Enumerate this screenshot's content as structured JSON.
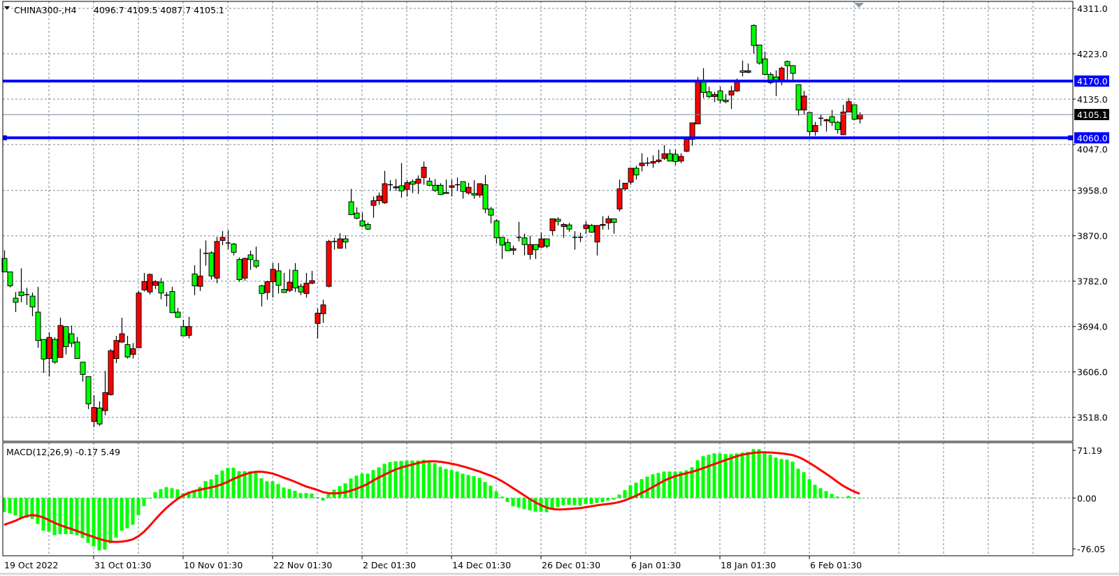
{
  "header": {
    "symbol_timeframe": "CHINA300-,H4",
    "ohlc": "4096.7 4109.5 4087.7 4105.1"
  },
  "macd_header": "MACD(12,26,9) -0.17 5.49",
  "colors": {
    "background": "#ffffff",
    "grid": "#778899",
    "bull_body": "#ff0000",
    "bear_body": "#00ff00",
    "wick": "#000000",
    "hline": "#0000ff",
    "bid_line": "#778899",
    "histogram": "#00ff00",
    "signal": "#ff0000"
  },
  "chart_data": [
    {
      "type": "candlestick",
      "symbol": "CHINA300-",
      "timeframe": "H4",
      "ylim": [
        3490,
        4325
      ],
      "y_ticks": [
        "4311.0",
        "4223.0",
        "4135.0",
        "4047.0",
        "3958.0",
        "3870.0",
        "3782.0",
        "3694.0",
        "3606.0",
        "3518.0"
      ],
      "x_labels": [
        "19 Oct 2022",
        "31 Oct 01:30",
        "10 Nov 01:30",
        "22 Nov 01:30",
        "2 Dec 01:30",
        "14 Dec 01:30",
        "26 Dec 01:30",
        "6 Jan 01:30",
        "18 Jan 01:30",
        "6 Feb 01:30"
      ],
      "grid": true,
      "horizontal_lines": [
        {
          "price": 4170.0,
          "label": "4170.0"
        },
        {
          "price": 4060.0,
          "label": "4060.0",
          "selected": true
        }
      ],
      "bid": {
        "price": 4105.1,
        "label": "4105.1"
      },
      "ohlc": [
        [
          3826,
          3842,
          3800,
          3800
        ],
        [
          3800,
          3800,
          3770,
          3773
        ],
        [
          3749,
          3761,
          3722,
          3741
        ],
        [
          3761,
          3807,
          3741,
          3754
        ],
        [
          3756,
          3769,
          3736,
          3756
        ],
        [
          3753,
          3760,
          3714,
          3732
        ],
        [
          3722,
          3771,
          3653,
          3667
        ],
        [
          3669,
          3669,
          3604,
          3631
        ],
        [
          3632,
          3683,
          3597,
          3673
        ],
        [
          3669,
          3673,
          3622,
          3625
        ],
        [
          3634,
          3711,
          3634,
          3696
        ],
        [
          3694,
          3694,
          3640,
          3655
        ],
        [
          3680,
          3696,
          3654,
          3662
        ],
        [
          3664,
          3674,
          3632,
          3632
        ],
        [
          3625,
          3625,
          3587,
          3601
        ],
        [
          3597,
          3597,
          3534,
          3544
        ],
        [
          3510,
          3561,
          3499,
          3537
        ],
        [
          3536,
          3549,
          3501,
          3505
        ],
        [
          3531,
          3608,
          3522,
          3566
        ],
        [
          3562,
          3650,
          3560,
          3647
        ],
        [
          3632,
          3676,
          3623,
          3667
        ],
        [
          3664,
          3711,
          3662,
          3680
        ],
        [
          3659,
          3676,
          3632,
          3635
        ],
        [
          3640,
          3662,
          3632,
          3651
        ],
        [
          3653,
          3763,
          3653,
          3759
        ],
        [
          3765,
          3798,
          3762,
          3781
        ],
        [
          3761,
          3797,
          3756,
          3795
        ],
        [
          3774,
          3784,
          3767,
          3781
        ],
        [
          3780,
          3788,
          3747,
          3759
        ],
        [
          3755,
          3761,
          3733,
          3755
        ],
        [
          3762,
          3771,
          3720,
          3721
        ],
        [
          3722,
          3730,
          3712,
          3712
        ],
        [
          3694,
          3707,
          3676,
          3676
        ],
        [
          3677,
          3713,
          3671,
          3694
        ],
        [
          3796,
          3813,
          3755,
          3773
        ],
        [
          3772,
          3845,
          3763,
          3792
        ],
        [
          3836,
          3861,
          3812,
          3836
        ],
        [
          3837,
          3840,
          3785,
          3792
        ],
        [
          3788,
          3868,
          3778,
          3859
        ],
        [
          3861,
          3879,
          3852,
          3867
        ],
        [
          3856,
          3881,
          3844,
          3856
        ],
        [
          3854,
          3856,
          3832,
          3838
        ],
        [
          3824,
          3828,
          3781,
          3785
        ],
        [
          3788,
          3828,
          3783,
          3826
        ],
        [
          3833,
          3841,
          3804,
          3824
        ],
        [
          3822,
          3849,
          3807,
          3811
        ],
        [
          3773,
          3775,
          3733,
          3758
        ],
        [
          3760,
          3783,
          3746,
          3781
        ],
        [
          3781,
          3817,
          3750,
          3805
        ],
        [
          3802,
          3817,
          3758,
          3774
        ],
        [
          3766,
          3798,
          3760,
          3760
        ],
        [
          3764,
          3805,
          3761,
          3780
        ],
        [
          3803,
          3817,
          3761,
          3769
        ],
        [
          3772,
          3777,
          3755,
          3761
        ],
        [
          3758,
          3798,
          3750,
          3778
        ],
        [
          3778,
          3802,
          3776,
          3783
        ],
        [
          3700,
          3729,
          3671,
          3720
        ],
        [
          3719,
          3746,
          3701,
          3736
        ],
        [
          3772,
          3862,
          3770,
          3859
        ],
        [
          3859,
          3866,
          3843,
          3859
        ],
        [
          3846,
          3875,
          3845,
          3864
        ],
        [
          3864,
          3871,
          3845,
          3858
        ],
        [
          3936,
          3961,
          3910,
          3911
        ],
        [
          3914,
          3925,
          3902,
          3904
        ],
        [
          3899,
          3915,
          3887,
          3889
        ],
        [
          3892,
          3896,
          3881,
          3883
        ],
        [
          3929,
          3946,
          3905,
          3938
        ],
        [
          3938,
          3954,
          3930,
          3947
        ],
        [
          3934,
          3996,
          3932,
          3971
        ],
        [
          3969,
          3978,
          3957,
          3969
        ],
        [
          3963,
          3980,
          3957,
          3965
        ],
        [
          3967,
          4011,
          3944,
          3957
        ],
        [
          3960,
          3978,
          3946,
          3973
        ],
        [
          3975,
          3979,
          3953,
          3970
        ],
        [
          3972,
          3987,
          3951,
          3980
        ],
        [
          3983,
          4014,
          3969,
          4003
        ],
        [
          3976,
          3983,
          3966,
          3968
        ],
        [
          3968,
          3980,
          3955,
          3958
        ],
        [
          3968,
          3972,
          3949,
          3950
        ],
        [
          3954,
          3979,
          3952,
          3952
        ],
        [
          3964,
          3979,
          3946,
          3967
        ],
        [
          3969,
          3983,
          3957,
          3969
        ],
        [
          3975,
          3975,
          3942,
          3956
        ],
        [
          3953,
          3973,
          3950,
          3964
        ],
        [
          3952,
          3978,
          3942,
          3949
        ],
        [
          3949,
          3971,
          3944,
          3971
        ],
        [
          3969,
          3988,
          3914,
          3922
        ],
        [
          3922,
          3926,
          3894,
          3910
        ],
        [
          3899,
          3902,
          3855,
          3866
        ],
        [
          3867,
          3867,
          3825,
          3852
        ],
        [
          3857,
          3864,
          3841,
          3841
        ],
        [
          3842,
          3851,
          3833,
          3845
        ],
        [
          3867,
          3897,
          3859,
          3867
        ],
        [
          3866,
          3874,
          3832,
          3853
        ],
        [
          3834,
          3870,
          3824,
          3853
        ],
        [
          3853,
          3853,
          3825,
          3843
        ],
        [
          3848,
          3876,
          3846,
          3864
        ],
        [
          3864,
          3864,
          3846,
          3850
        ],
        [
          3880,
          3903,
          3871,
          3903
        ],
        [
          3902,
          3906,
          3890,
          3898
        ],
        [
          3888,
          3895,
          3866,
          3892
        ],
        [
          3891,
          3895,
          3878,
          3883
        ],
        [
          3867,
          3879,
          3843,
          3867
        ],
        [
          3867,
          3876,
          3858,
          3867
        ],
        [
          3884,
          3898,
          3874,
          3891
        ],
        [
          3890,
          3893,
          3876,
          3877
        ],
        [
          3858,
          3890,
          3832,
          3890
        ],
        [
          3890,
          3908,
          3882,
          3892
        ],
        [
          3895,
          3909,
          3882,
          3903
        ],
        [
          3903,
          3903,
          3874,
          3896
        ],
        [
          3922,
          3979,
          3917,
          3961
        ],
        [
          3961,
          3972,
          3957,
          3972
        ],
        [
          3974,
          4002,
          3969,
          4001
        ],
        [
          4001,
          4006,
          3979,
          3988
        ],
        [
          4006,
          4030,
          3995,
          4011
        ],
        [
          4011,
          4022,
          4005,
          4011
        ],
        [
          4011,
          4026,
          4002,
          4014
        ],
        [
          4014,
          4037,
          4011,
          4017
        ],
        [
          4020,
          4046,
          4017,
          4029
        ],
        [
          4029,
          4038,
          4014,
          4015
        ],
        [
          4028,
          4037,
          4007,
          4014
        ],
        [
          4015,
          4030,
          4011,
          4024
        ],
        [
          4034,
          4059,
          4032,
          4057
        ],
        [
          4057,
          4089,
          4045,
          4089
        ],
        [
          4087,
          4178,
          4087,
          4171
        ],
        [
          4171,
          4195,
          4137,
          4148
        ],
        [
          4149,
          4159,
          4137,
          4140
        ],
        [
          4140,
          4149,
          4129,
          4144
        ],
        [
          4151,
          4159,
          4127,
          4133
        ],
        [
          4133,
          4145,
          4127,
          4130
        ],
        [
          4143,
          4161,
          4116,
          4151
        ],
        [
          4151,
          4175,
          4149,
          4168
        ],
        [
          4190,
          4210,
          4179,
          4187
        ],
        [
          4187,
          4204,
          4185,
          4190
        ],
        [
          4278,
          4280,
          4223,
          4239
        ],
        [
          4240,
          4240,
          4202,
          4205
        ],
        [
          4213,
          4227,
          4181,
          4183
        ],
        [
          4183,
          4187,
          4164,
          4167
        ],
        [
          4178,
          4191,
          4141,
          4172
        ],
        [
          4172,
          4198,
          4162,
          4195
        ],
        [
          4208,
          4210,
          4172,
          4200
        ],
        [
          4200,
          4201,
          4172,
          4185
        ],
        [
          4163,
          4163,
          4103,
          4114
        ],
        [
          4114,
          4151,
          4105,
          4141
        ],
        [
          4109,
          4109,
          4064,
          4072
        ],
        [
          4072,
          4091,
          4064,
          4084
        ],
        [
          4098,
          4105,
          4083,
          4098
        ],
        [
          4093,
          4097,
          4072,
          4095
        ],
        [
          4101,
          4114,
          4083,
          4090
        ],
        [
          4090,
          4093,
          4068,
          4076
        ],
        [
          4066,
          4124,
          4066,
          4110
        ],
        [
          4110,
          4137,
          4110,
          4130
        ],
        [
          4124,
          4125,
          4094,
          4096
        ],
        [
          4096.7,
          4109.5,
          4087.7,
          4105.1
        ]
      ]
    },
    {
      "type": "bar+line",
      "indicator": "MACD(12,26,9)",
      "ylim": [
        -76.05,
        71.19
      ],
      "y_ticks": [
        "71.19",
        "0.00",
        "-76.05"
      ],
      "grid": true,
      "signal_period": 9,
      "main": [
        -20.9,
        -22.6,
        -26,
        -29.5,
        -29.5,
        -31.3,
        -38.9,
        -48.7,
        -50.4,
        -55.6,
        -53.9,
        -53.9,
        -53.9,
        -55.6,
        -59.8,
        -67.1,
        -72.3,
        -78.2,
        -77.2,
        -67.8,
        -59.1,
        -48.7,
        -45.2,
        -40,
        -25.4,
        -12.2,
        -0.7,
        8.7,
        13.2,
        16.3,
        14.6,
        12.9,
        7,
        9.4,
        11.8,
        16.7,
        25.4,
        27.8,
        34.8,
        41,
        45.2,
        45.2,
        40,
        40,
        40,
        38.2,
        29.5,
        25,
        25,
        20.9,
        15.6,
        13.6,
        10.8,
        7.3,
        7.3,
        6.6,
        1.4,
        -3.8,
        5.9,
        12.5,
        17.7,
        21.9,
        29.2,
        33.4,
        36.5,
        36.5,
        41.7,
        45.9,
        51.1,
        53.5,
        54.9,
        55.3,
        56,
        56,
        56,
        57,
        53.5,
        51.8,
        46.6,
        43.5,
        41.7,
        39.6,
        36.2,
        34.4,
        32.7,
        30.2,
        24,
        18.4,
        10.1,
        2.1,
        -5.9,
        -12.5,
        -14.3,
        -16.7,
        -18.4,
        -20.5,
        -20.5,
        -21.2,
        -16,
        -13.6,
        -10.8,
        -10.1,
        -10.8,
        -11.5,
        -9,
        -9,
        -7.3,
        -6.3,
        -3.8,
        -2.4,
        5.2,
        11.8,
        18.8,
        22.9,
        28.2,
        32,
        35.5,
        37.5,
        39.6,
        39.6,
        39.6,
        39.6,
        41.4,
        45.9,
        56.3,
        62.6,
        64.7,
        66.7,
        66.7,
        65.7,
        65.7,
        66.7,
        67.8,
        68.8,
        73,
        73,
        66.7,
        64.7,
        60.5,
        58.4,
        57.4,
        54.2,
        43.8,
        38.6,
        28.2,
        19.8,
        14.6,
        10.4,
        6.3,
        2.1,
        1,
        3.1,
        1,
        -0.17
      ],
      "signal_head": [
        -40,
        -37,
        -34,
        -30,
        -27,
        -25.4,
        -26.5,
        -29
      ]
    }
  ]
}
